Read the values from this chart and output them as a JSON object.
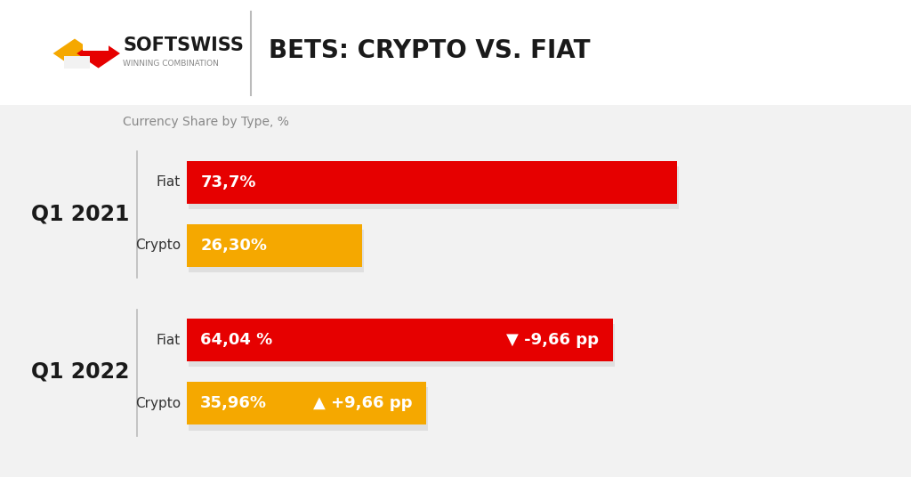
{
  "title": "BETS: CRYPTO VS. FIAT",
  "subtitle": "Currency Share by Type, %",
  "background_color": "#f2f2f2",
  "header_bg": "#ffffff",
  "q1_2021_label": "Q1 2021",
  "q1_2022_label": "Q1 2022",
  "fiat_label": "Fiat",
  "crypto_label": "Crypto",
  "bars": {
    "q2021_fiat_value": 73.7,
    "q2021_fiat_label": "73,7%",
    "q2021_fiat_color": "#e60000",
    "q2021_crypto_value": 26.3,
    "q2021_crypto_label": "26,30%",
    "q2021_crypto_color": "#f5a800",
    "q2022_fiat_value": 64.04,
    "q2022_fiat_label": "64,04 %",
    "q2022_fiat_color": "#e60000",
    "q2022_fiat_change": "▼ -9,66 pp",
    "q2022_crypto_value": 35.96,
    "q2022_crypto_label": "35,96%",
    "q2022_crypto_color": "#f5a800",
    "q2022_crypto_change": "▲ +9,66 pp"
  },
  "softswiss_color": "#1a1a1a",
  "winning_color": "#888888",
  "separator_color": "#bbbbbb",
  "label_color": "#333333",
  "shadow_color": "#d0d0d0"
}
